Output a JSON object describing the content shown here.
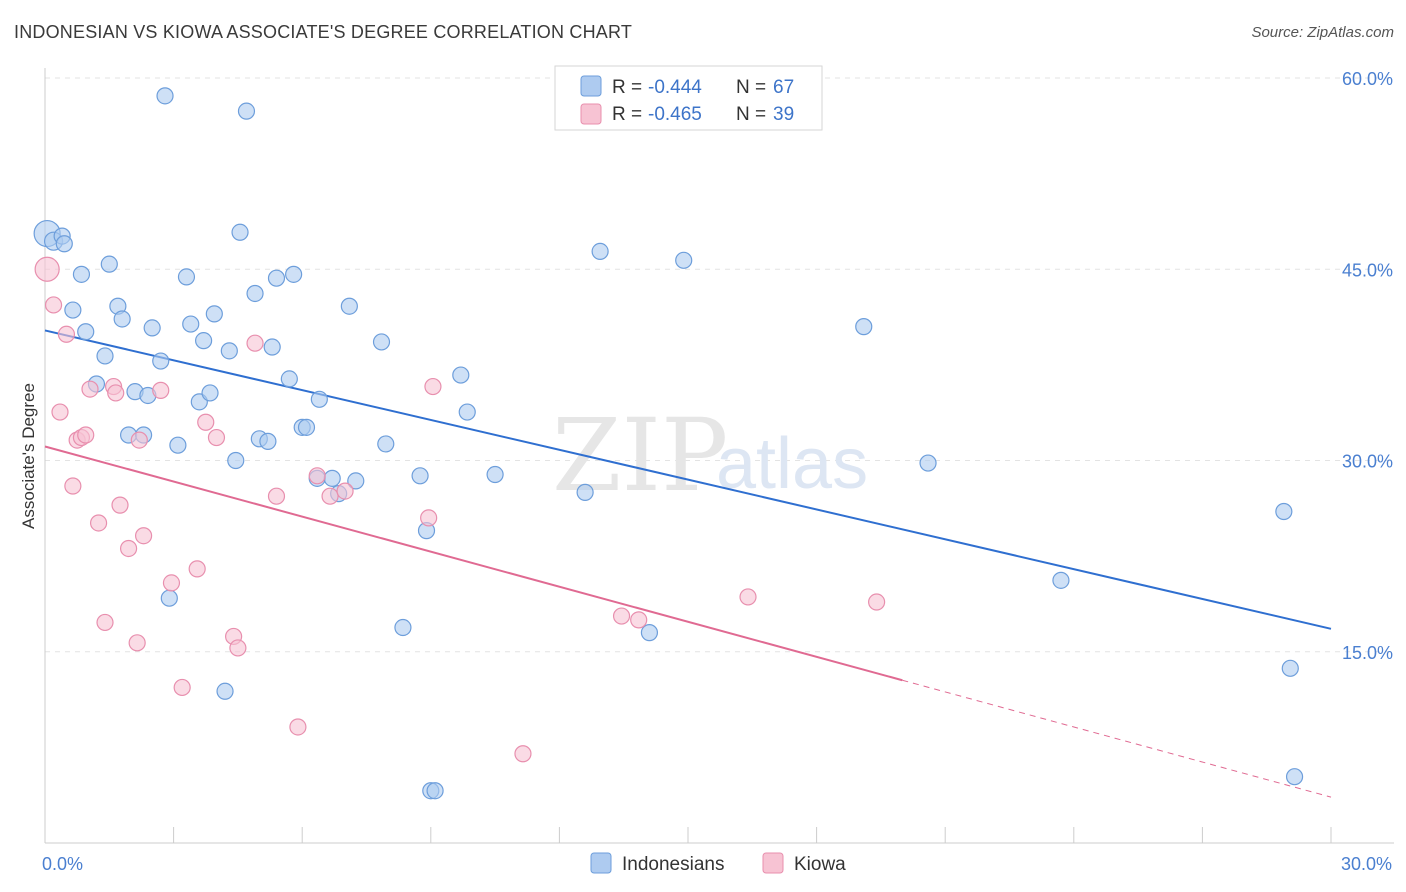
{
  "title": "INDONESIAN VS KIOWA ASSOCIATE'S DEGREE CORRELATION CHART",
  "source": "Source: ZipAtlas.com",
  "watermark": {
    "part1": "ZIP",
    "part2": "atlas"
  },
  "colors": {
    "blue_fill": "#aecbf0",
    "blue_stroke": "#6d9edb",
    "blue_line": "#2f6fd0",
    "pink_fill": "#f7c3d3",
    "pink_stroke": "#e88fae",
    "pink_line": "#e06a92",
    "tick_text": "#4a7fd0",
    "grid": "#e3e3e3"
  },
  "legend": {
    "rows": [
      {
        "r_label": "R = ",
        "r_value": "-0.444",
        "n_label": "N = ",
        "n_value": "67"
      },
      {
        "r_label": "R = ",
        "r_value": "-0.465",
        "n_label": "N = ",
        "n_value": "39"
      }
    ]
  },
  "chart_data": {
    "type": "scatter",
    "title": "INDONESIAN VS KIOWA ASSOCIATE'S DEGREE CORRELATION CHART",
    "xlabel": "",
    "ylabel": "Associate's Degree",
    "xlim": [
      0,
      30
    ],
    "ylim": [
      0,
      60
    ],
    "x_tick_labels": [
      "0.0%",
      "30.0%"
    ],
    "y_ticks": [
      15,
      30,
      45,
      60
    ],
    "y_tick_labels": [
      "15.0%",
      "30.0%",
      "45.0%",
      "60.0%"
    ],
    "grid": true,
    "legend_position": "top-center",
    "series": [
      {
        "name": "Indonesians",
        "R": -0.444,
        "N": 67,
        "trend": {
          "x": [
            0,
            30
          ],
          "y": [
            40.2,
            16.8
          ],
          "dashed_from": null
        },
        "points": [
          [
            0.05,
            47.8,
            13
          ],
          [
            0.2,
            47.2,
            9
          ],
          [
            0.4,
            47.6,
            8
          ],
          [
            0.45,
            47.0,
            8
          ],
          [
            0.65,
            41.8,
            8
          ],
          [
            0.85,
            44.6,
            8
          ],
          [
            0.95,
            40.1,
            8
          ],
          [
            1.2,
            36.0,
            8
          ],
          [
            1.4,
            38.2,
            8
          ],
          [
            1.5,
            45.4,
            8
          ],
          [
            1.7,
            42.1,
            8
          ],
          [
            1.8,
            41.1,
            8
          ],
          [
            1.95,
            32.0,
            8
          ],
          [
            2.1,
            35.4,
            8
          ],
          [
            2.3,
            32.0,
            8
          ],
          [
            2.4,
            35.1,
            8
          ],
          [
            2.5,
            40.4,
            8
          ],
          [
            2.7,
            37.8,
            8
          ],
          [
            2.8,
            58.6,
            8
          ],
          [
            2.9,
            19.2,
            8
          ],
          [
            3.1,
            31.2,
            8
          ],
          [
            3.3,
            44.4,
            8
          ],
          [
            3.4,
            40.7,
            8
          ],
          [
            3.6,
            34.6,
            8
          ],
          [
            3.7,
            39.4,
            8
          ],
          [
            3.85,
            35.3,
            8
          ],
          [
            3.95,
            41.5,
            8
          ],
          [
            4.2,
            11.9,
            8
          ],
          [
            4.3,
            38.6,
            8
          ],
          [
            4.45,
            30.0,
            8
          ],
          [
            4.55,
            47.9,
            8
          ],
          [
            4.7,
            57.4,
            8
          ],
          [
            4.9,
            43.1,
            8
          ],
          [
            5.0,
            31.7,
            8
          ],
          [
            5.2,
            31.5,
            8
          ],
          [
            5.3,
            38.9,
            8
          ],
          [
            5.4,
            44.3,
            8
          ],
          [
            5.7,
            36.4,
            8
          ],
          [
            5.8,
            44.6,
            8
          ],
          [
            6.0,
            32.6,
            8
          ],
          [
            6.1,
            32.6,
            8
          ],
          [
            6.35,
            28.6,
            8
          ],
          [
            6.4,
            34.8,
            8
          ],
          [
            6.7,
            28.6,
            8
          ],
          [
            6.85,
            27.4,
            8
          ],
          [
            7.1,
            42.1,
            8
          ],
          [
            7.25,
            28.4,
            8
          ],
          [
            7.85,
            39.3,
            8
          ],
          [
            7.95,
            31.3,
            8
          ],
          [
            8.35,
            16.9,
            8
          ],
          [
            8.75,
            28.8,
            8
          ],
          [
            8.9,
            24.5,
            8
          ],
          [
            9.0,
            4.1,
            8
          ],
          [
            9.1,
            4.1,
            8
          ],
          [
            9.7,
            36.7,
            8
          ],
          [
            9.85,
            33.8,
            8
          ],
          [
            10.5,
            28.9,
            8
          ],
          [
            12.6,
            27.5,
            8
          ],
          [
            12.95,
            46.4,
            8
          ],
          [
            14.1,
            16.5,
            8
          ],
          [
            14.9,
            45.7,
            8
          ],
          [
            19.1,
            40.5,
            8
          ],
          [
            20.6,
            29.8,
            8
          ],
          [
            23.7,
            20.6,
            8
          ],
          [
            28.9,
            26.0,
            8
          ],
          [
            29.05,
            13.7,
            8
          ],
          [
            29.15,
            5.2,
            8
          ]
        ]
      },
      {
        "name": "Kiowa",
        "R": -0.465,
        "N": 39,
        "trend": {
          "x": [
            0,
            30
          ],
          "y": [
            31.1,
            3.6
          ],
          "dashed_from": 20.0
        },
        "points": [
          [
            0.05,
            45.0,
            12
          ],
          [
            0.2,
            42.2,
            8
          ],
          [
            0.35,
            33.8,
            8
          ],
          [
            0.5,
            39.9,
            8
          ],
          [
            0.65,
            28.0,
            8
          ],
          [
            0.75,
            31.6,
            8
          ],
          [
            0.85,
            31.8,
            8
          ],
          [
            0.95,
            32.0,
            8
          ],
          [
            1.05,
            35.6,
            8
          ],
          [
            1.25,
            25.1,
            8
          ],
          [
            1.4,
            17.3,
            8
          ],
          [
            1.6,
            35.8,
            8
          ],
          [
            1.65,
            35.3,
            8
          ],
          [
            1.75,
            26.5,
            8
          ],
          [
            1.95,
            23.1,
            8
          ],
          [
            2.15,
            15.7,
            8
          ],
          [
            2.2,
            31.6,
            8
          ],
          [
            2.3,
            24.1,
            8
          ],
          [
            2.7,
            35.5,
            8
          ],
          [
            2.95,
            20.4,
            8
          ],
          [
            3.2,
            12.2,
            8
          ],
          [
            3.55,
            21.5,
            8
          ],
          [
            3.75,
            33.0,
            8
          ],
          [
            4.0,
            31.8,
            8
          ],
          [
            4.4,
            16.2,
            8
          ],
          [
            4.5,
            15.3,
            8
          ],
          [
            4.9,
            39.2,
            8
          ],
          [
            5.4,
            27.2,
            8
          ],
          [
            5.9,
            9.1,
            8
          ],
          [
            6.35,
            28.8,
            8
          ],
          [
            6.65,
            27.2,
            8
          ],
          [
            7.0,
            27.6,
            8
          ],
          [
            8.95,
            25.5,
            8
          ],
          [
            9.05,
            35.8,
            8
          ],
          [
            11.15,
            7.0,
            8
          ],
          [
            13.45,
            17.8,
            8
          ],
          [
            13.85,
            17.5,
            8
          ],
          [
            16.4,
            19.3,
            8
          ],
          [
            19.4,
            18.9,
            8
          ]
        ]
      }
    ]
  }
}
